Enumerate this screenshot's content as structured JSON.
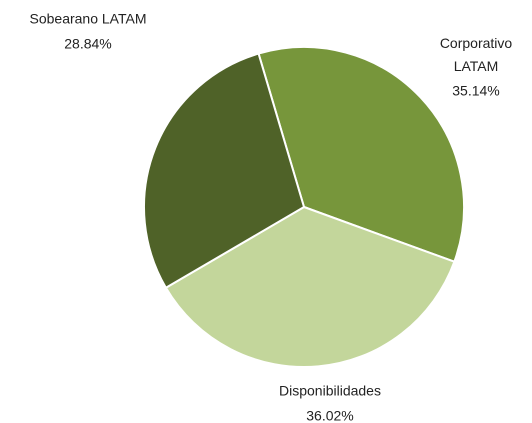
{
  "chart_data": {
    "type": "pie",
    "categories": [
      "Corporativo LATAM",
      "Disponibilidades",
      "Sobearano LATAM"
    ],
    "values": [
      35.14,
      36.02,
      28.84
    ],
    "value_labels": [
      "35.14%",
      "36.02%",
      "28.84%"
    ],
    "colors": [
      "#77963b",
      "#c3d69b",
      "#4f6228"
    ]
  }
}
